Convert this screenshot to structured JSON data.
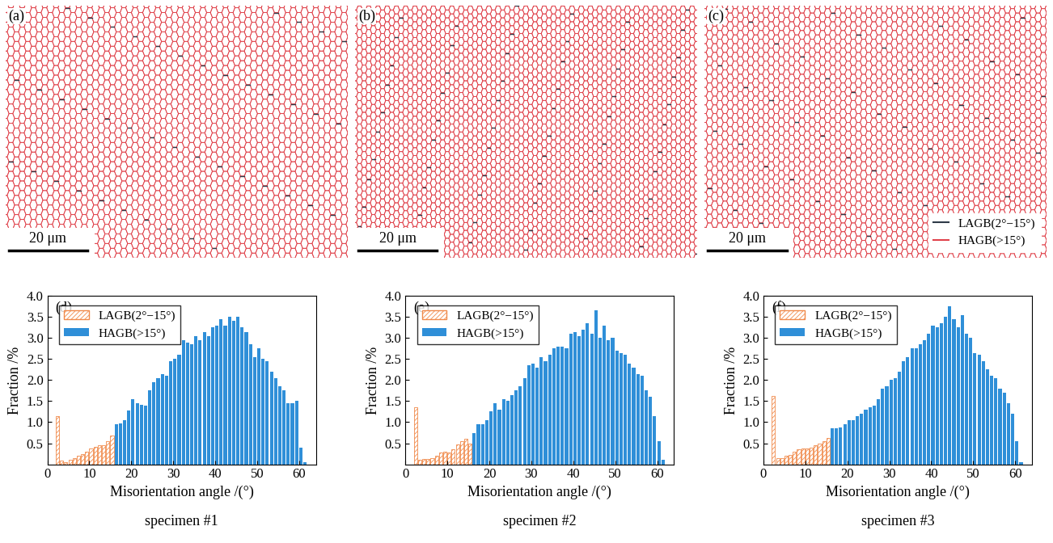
{
  "maps": [
    {
      "panel": "(a)",
      "scale_bar": "20 μm"
    },
    {
      "panel": "(b)",
      "scale_bar": "20 μm"
    },
    {
      "panel": "(c)",
      "scale_bar": "20 μm"
    }
  ],
  "map_legend": [
    {
      "name": "LAGB(2°−15°)",
      "color": "#2e3a48"
    },
    {
      "name": "HAGB(>15°)",
      "color": "#e0424b"
    }
  ],
  "chart_data": [
    {
      "type": "histogram",
      "panel": "(d)",
      "caption": "specimen #1",
      "x_label": "Misorientation angle /(°)",
      "y_label": "Fraction /%",
      "xlim": [
        0,
        64
      ],
      "ylim": [
        0,
        4
      ],
      "xticks": [
        0,
        10,
        20,
        30,
        40,
        50,
        60
      ],
      "yticks": [
        {
          "value": 0.5,
          "label": "0.5"
        },
        {
          "value": 1,
          "label": "1.0"
        },
        {
          "value": 1.5,
          "label": "1.5"
        },
        {
          "value": 2,
          "label": "2.0"
        },
        {
          "value": 2.5,
          "label": "2.5"
        },
        {
          "value": 3,
          "label": "3.0"
        },
        {
          "value": 3.5,
          "label": "3.5"
        },
        {
          "value": 4,
          "label": "4.0"
        }
      ],
      "legend": "upper left",
      "series": [
        {
          "name": "LAGB(2°−15°)",
          "color": "#f08a4b",
          "bins": [
            2,
            3,
            4,
            5,
            6,
            7,
            8,
            9,
            10,
            11,
            12,
            13,
            14,
            15,
            16
          ],
          "values": [
            1.15,
            0.08,
            0.05,
            0.1,
            0.15,
            0.2,
            0.25,
            0.3,
            0.38,
            0.42,
            0.45,
            0.45,
            0.55,
            0.68
          ]
        },
        {
          "name": "HAGB(>15°)",
          "color": "#2f8fd8",
          "bins": [
            16,
            17,
            18,
            19,
            20,
            21,
            22,
            23,
            24,
            25,
            26,
            27,
            28,
            29,
            30,
            31,
            32,
            33,
            34,
            35,
            36,
            37,
            38,
            39,
            40,
            41,
            42,
            43,
            44,
            45,
            46,
            47,
            48,
            49,
            50,
            51,
            52,
            53,
            54,
            55,
            56,
            57,
            58,
            59,
            60,
            61,
            62
          ],
          "values": [
            0.95,
            0.98,
            1.05,
            1.28,
            1.55,
            1.45,
            1.42,
            1.4,
            1.75,
            1.95,
            2.05,
            2.15,
            2.1,
            2.45,
            2.5,
            2.6,
            2.95,
            2.9,
            2.85,
            3.05,
            2.95,
            3.15,
            3.05,
            3.25,
            3.3,
            3.45,
            3.3,
            3.5,
            3.4,
            3.5,
            3.25,
            3.15,
            2.85,
            2.55,
            2.75,
            2.5,
            2.45,
            2.2,
            2.05,
            1.85,
            1.75,
            1.45,
            1.45,
            1.5,
            0.4,
            0.05
          ]
        }
      ]
    },
    {
      "type": "histogram",
      "panel": "(e)",
      "caption": "specimen #2",
      "x_label": "Misorientation angle /(°)",
      "y_label": "Fraction /%",
      "xlim": [
        0,
        64
      ],
      "ylim": [
        0,
        4
      ],
      "xticks": [
        0,
        10,
        20,
        30,
        40,
        50,
        60
      ],
      "yticks": [
        {
          "value": 0.5,
          "label": "0.5"
        },
        {
          "value": 1,
          "label": "1.0"
        },
        {
          "value": 1.5,
          "label": "1.5"
        },
        {
          "value": 2,
          "label": "2.0"
        },
        {
          "value": 2.5,
          "label": "2.5"
        },
        {
          "value": 3,
          "label": "3.0"
        },
        {
          "value": 3.5,
          "label": "3.5"
        },
        {
          "value": 4,
          "label": "4.0"
        }
      ],
      "legend": "upper left",
      "series": [
        {
          "name": "LAGB(2°−15°)",
          "color": "#f08a4b",
          "bins": [
            2,
            3,
            4,
            5,
            6,
            7,
            8,
            9,
            10,
            11,
            12,
            13,
            14,
            15,
            16
          ],
          "values": [
            1.35,
            0.1,
            0.12,
            0.12,
            0.15,
            0.2,
            0.28,
            0.3,
            0.28,
            0.35,
            0.48,
            0.55,
            0.6,
            0.5
          ]
        },
        {
          "name": "HAGB(>15°)",
          "color": "#2f8fd8",
          "bins": [
            16,
            17,
            18,
            19,
            20,
            21,
            22,
            23,
            24,
            25,
            26,
            27,
            28,
            29,
            30,
            31,
            32,
            33,
            34,
            35,
            36,
            37,
            38,
            39,
            40,
            41,
            42,
            43,
            44,
            45,
            46,
            47,
            48,
            49,
            50,
            51,
            52,
            53,
            54,
            55,
            56,
            57,
            58,
            59,
            60,
            61,
            62
          ],
          "values": [
            0.75,
            0.95,
            0.95,
            1.05,
            1.25,
            1.45,
            1.3,
            1.55,
            1.5,
            1.65,
            1.75,
            1.85,
            2.05,
            2.35,
            2.4,
            2.3,
            2.55,
            2.45,
            2.6,
            2.75,
            2.8,
            2.8,
            2.75,
            3.1,
            3.15,
            3.05,
            3.2,
            3.35,
            3.1,
            3.65,
            3.0,
            3.3,
            2.95,
            3.0,
            2.7,
            2.65,
            2.6,
            2.4,
            2.3,
            2.15,
            2.1,
            1.75,
            1.6,
            1.15,
            0.55,
            0.1
          ]
        }
      ]
    },
    {
      "type": "histogram",
      "panel": "(f)",
      "caption": "specimen #3",
      "x_label": "Misorientation angle /(°)",
      "y_label": "Fraction /%",
      "xlim": [
        0,
        64
      ],
      "ylim": [
        0,
        4
      ],
      "xticks": [
        0,
        10,
        20,
        30,
        40,
        50,
        60
      ],
      "yticks": [
        {
          "value": 0.5,
          "label": "0.5"
        },
        {
          "value": 1,
          "label": "1.0"
        },
        {
          "value": 1.5,
          "label": "1.5"
        },
        {
          "value": 2,
          "label": "2.0"
        },
        {
          "value": 2.5,
          "label": "2.5"
        },
        {
          "value": 3,
          "label": "3.0"
        },
        {
          "value": 3.5,
          "label": "3.5"
        },
        {
          "value": 4,
          "label": "4.0"
        }
      ],
      "legend": "upper left",
      "series": [
        {
          "name": "LAGB(2°−15°)",
          "color": "#f08a4b",
          "bins": [
            2,
            3,
            4,
            5,
            6,
            7,
            8,
            9,
            10,
            11,
            12,
            13,
            14,
            15,
            16
          ],
          "values": [
            1.62,
            0.15,
            0.15,
            0.2,
            0.22,
            0.3,
            0.35,
            0.38,
            0.38,
            0.4,
            0.45,
            0.5,
            0.55,
            0.62
          ]
        },
        {
          "name": "HAGB(>15°)",
          "color": "#2f8fd8",
          "bins": [
            16,
            17,
            18,
            19,
            20,
            21,
            22,
            23,
            24,
            25,
            26,
            27,
            28,
            29,
            30,
            31,
            32,
            33,
            34,
            35,
            36,
            37,
            38,
            39,
            40,
            41,
            42,
            43,
            44,
            45,
            46,
            47,
            48,
            49,
            50,
            51,
            52,
            53,
            54,
            55,
            56,
            57,
            58,
            59,
            60,
            61,
            62
          ],
          "values": [
            0.85,
            0.85,
            0.88,
            0.95,
            1.05,
            1.05,
            1.15,
            1.2,
            1.3,
            1.35,
            1.4,
            1.55,
            1.8,
            1.85,
            2.0,
            2.05,
            2.2,
            2.45,
            2.55,
            2.75,
            2.75,
            2.85,
            2.95,
            3.1,
            3.3,
            3.25,
            3.35,
            3.5,
            3.75,
            3.45,
            3.25,
            3.55,
            3.1,
            3.0,
            2.65,
            2.6,
            2.45,
            2.25,
            2.1,
            2.05,
            1.8,
            1.7,
            1.45,
            1.2,
            0.55,
            0.05
          ]
        }
      ]
    }
  ]
}
